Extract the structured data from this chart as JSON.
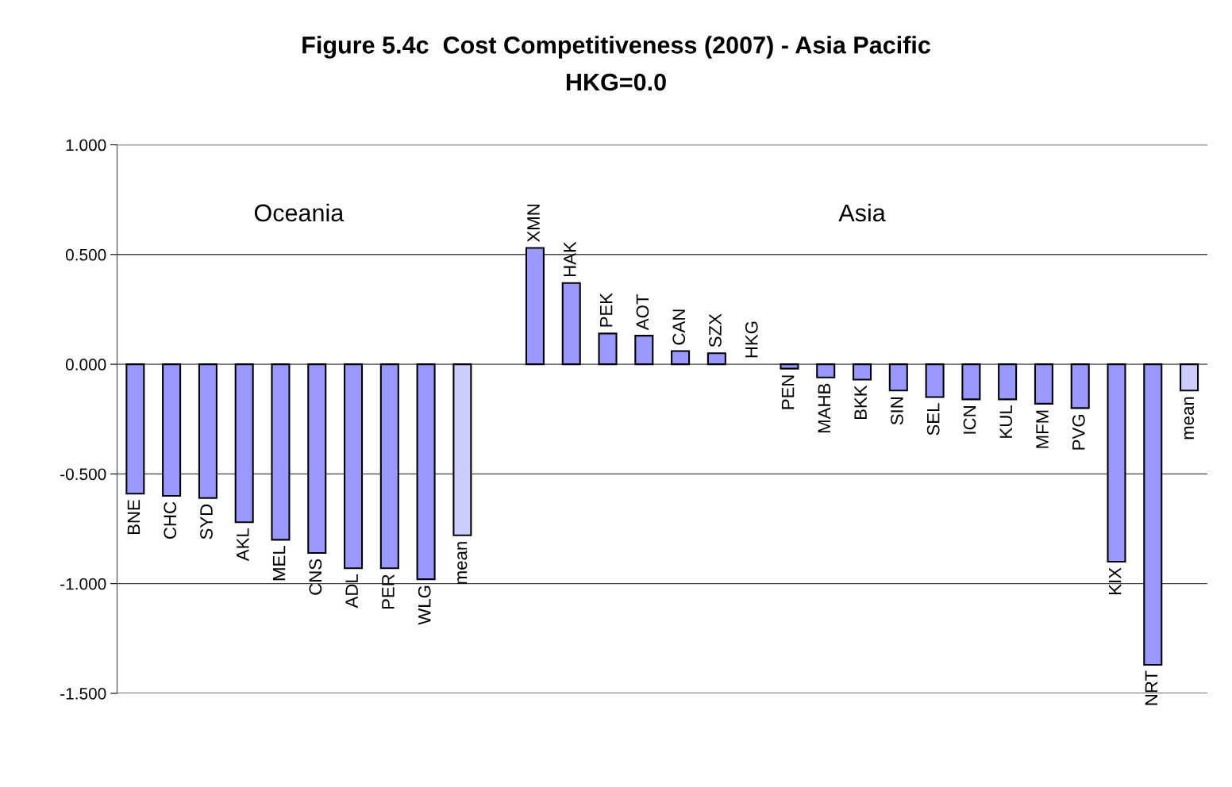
{
  "chart_data": {
    "type": "bar",
    "title": "Figure 5.4c  Cost Competitiveness (2007) - Asia Pacific",
    "subtitle": "HKG=0.0",
    "categories": [
      "BNE",
      "CHC",
      "SYD",
      "AKL",
      "MEL",
      "CNS",
      "ADL",
      "PER",
      "WLG",
      "mean",
      null,
      "XMN",
      "HAK",
      "PEK",
      "AOT",
      "CAN",
      "SZX",
      "HKG",
      "PEN",
      "MAHB",
      "BKK",
      "SIN",
      "SEL",
      "ICN",
      "KUL",
      "MFM",
      "PVG",
      "KIX",
      "NRT",
      "mean"
    ],
    "values": [
      -0.59,
      -0.6,
      -0.61,
      -0.72,
      -0.8,
      -0.86,
      -0.93,
      -0.93,
      -0.98,
      -0.78,
      null,
      0.53,
      0.37,
      0.14,
      0.13,
      0.06,
      0.05,
      0.0,
      -0.02,
      -0.06,
      -0.07,
      -0.12,
      -0.15,
      -0.16,
      -0.16,
      -0.18,
      -0.2,
      -0.9,
      -1.37,
      -0.12
    ],
    "colors": [
      "#9999ff",
      "#9999ff",
      "#9999ff",
      "#9999ff",
      "#9999ff",
      "#9999ff",
      "#9999ff",
      "#9999ff",
      "#9999ff",
      "#ccccff",
      null,
      "#9999ff",
      "#9999ff",
      "#9999ff",
      "#9999ff",
      "#9999ff",
      "#9999ff",
      "#9999ff",
      "#9999ff",
      "#9999ff",
      "#9999ff",
      "#9999ff",
      "#9999ff",
      "#9999ff",
      "#9999ff",
      "#9999ff",
      "#9999ff",
      "#9999ff",
      "#9999ff",
      "#ccccff"
    ],
    "annotations": [
      "Oceania",
      "Asia"
    ],
    "ylim": [
      -1.5,
      1.0
    ],
    "yticks": [
      {
        "value": 1.0,
        "label": "1.000"
      },
      {
        "value": 0.5,
        "label": "0.500"
      },
      {
        "value": 0.0,
        "label": "0.000"
      },
      {
        "value": -0.5,
        "label": "-0.500"
      },
      {
        "value": -1.0,
        "label": "-1.000"
      },
      {
        "value": -1.5,
        "label": "-1.500"
      }
    ],
    "grid": "y",
    "tick_labels": "y"
  }
}
